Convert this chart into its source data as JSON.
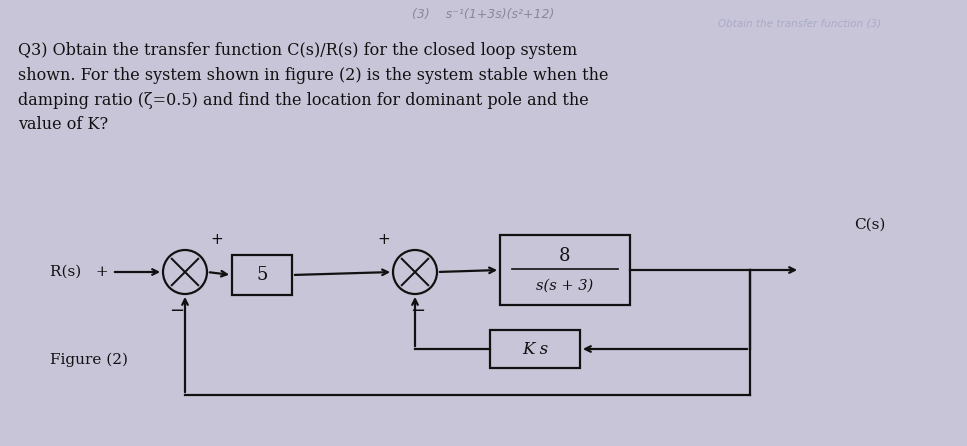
{
  "bg_color": "#c8c5d8",
  "text_color": "#111111",
  "figure_label": "Figure (2)",
  "block1_label": "5",
  "block2_top": "8",
  "block2_bot": "s(s + 3)",
  "block3_label": "K s",
  "box_color": "#111111",
  "line_color": "#111111",
  "top_formula": "(3)    s⁻¹(1+3s)(s²+12)",
  "top_faded": "Obtain the transfer function (3)",
  "q_line1": "Q3) Obtain the transfer function C(s)/R(s) for the closed loop system",
  "q_line2": "shown. For the system shown in figure (2) is the system stable when the",
  "q_line3": "damping ratio (ζ=0.5) and find the location for dominant pole and the",
  "q_line4": "value of K?",
  "Rs_label": "R(s)",
  "Cs_label": "C(s)",
  "plus_sign": "+",
  "minus_sign": "−"
}
